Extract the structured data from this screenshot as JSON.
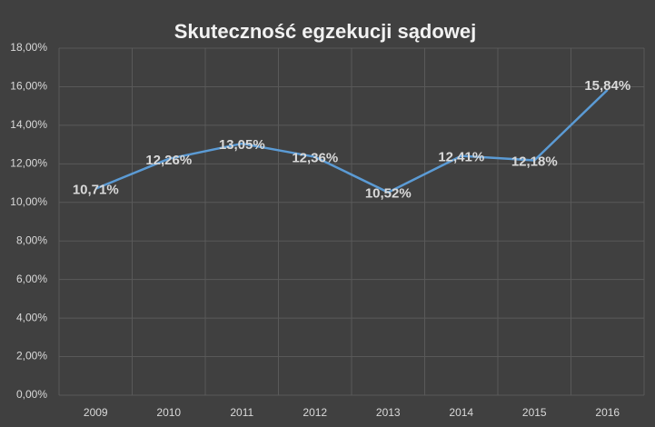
{
  "chart_data": {
    "type": "line",
    "title": "Skuteczność egzekucji sądowej",
    "categories": [
      "2009",
      "2010",
      "2011",
      "2012",
      "2013",
      "2014",
      "2015",
      "2016"
    ],
    "values": [
      10.71,
      12.26,
      13.05,
      12.36,
      10.52,
      12.41,
      12.18,
      15.84
    ],
    "value_labels": [
      "10,71%",
      "12,26%",
      "13,05%",
      "12,36%",
      "10,52%",
      "12,41%",
      "12,18%",
      "15,84%"
    ],
    "color": "#5b9bd5",
    "ylim": [
      0,
      18
    ],
    "yticks": [
      {
        "value": 0,
        "label": "0,00%"
      },
      {
        "value": 2,
        "label": "2,00%"
      },
      {
        "value": 4,
        "label": "4,00%"
      },
      {
        "value": 6,
        "label": "6,00%"
      },
      {
        "value": 8,
        "label": "8,00%"
      },
      {
        "value": 10,
        "label": "10,00%"
      },
      {
        "value": 12,
        "label": "12,00%"
      },
      {
        "value": 14,
        "label": "14,00%"
      },
      {
        "value": 16,
        "label": "16,00%"
      },
      {
        "value": 18,
        "label": "18,00%"
      }
    ],
    "grid": true
  }
}
